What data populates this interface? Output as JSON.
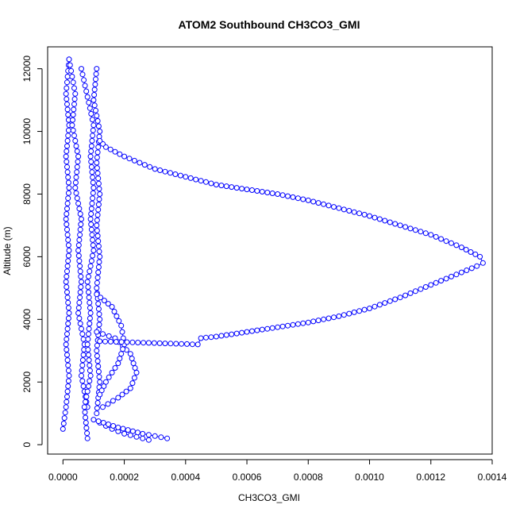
{
  "chart_data": {
    "type": "scatter",
    "title": "ATOM2 Southbound CH3CO3_GMI",
    "xlabel": "CH3CO3_GMI",
    "ylabel": "Altitude (m)",
    "xlim": [
      -5e-05,
      0.0014
    ],
    "ylim": [
      -300,
      12700
    ],
    "xticks": [
      0.0,
      0.0002,
      0.0004,
      0.0006,
      0.0008,
      0.001,
      0.0012,
      0.0014
    ],
    "xtick_labels": [
      "0.0000",
      "0.0002",
      "0.0004",
      "0.0006",
      "0.0008",
      "0.0010",
      "0.0012",
      "0.0014"
    ],
    "yticks": [
      0,
      2000,
      4000,
      6000,
      8000,
      10000,
      12000
    ],
    "ytick_labels": [
      "0",
      "2000",
      "4000",
      "6000",
      "8000",
      "10000",
      "12000"
    ],
    "grid": false,
    "series": [
      {
        "color": "#0000ff",
        "marker": "open-circle",
        "line": true,
        "profiles": [
          {
            "x": [
              0.0,
              1e-05,
              2e-05,
              1e-05,
              2e-05,
              1e-05,
              2e-05,
              1e-05,
              2e-05,
              1e-05,
              2e-05,
              1e-05,
              2e-05
            ],
            "y": [
              500,
              1200,
              2200,
              3200,
              4200,
              5200,
              6200,
              7200,
              8200,
              9200,
              10200,
              11200,
              12300
            ]
          },
          {
            "x": [
              2e-05,
              4e-05,
              3e-05,
              5e-05,
              4e-05,
              6e-05,
              5e-05,
              6e-05,
              5e-05,
              7e-05,
              6e-05,
              8e-05
            ],
            "y": [
              12300,
              11200,
              10200,
              9200,
              8200,
              7200,
              6200,
              5200,
              4200,
              3200,
              2200,
              1200
            ]
          },
          {
            "x": [
              8e-05,
              7e-05,
              9e-05,
              8e-05,
              9e-05,
              8e-05,
              0.0001,
              9e-05,
              0.0001,
              9e-05,
              0.0001,
              6e-05
            ],
            "y": [
              200,
              1200,
              2200,
              3200,
              4200,
              5200,
              6200,
              7200,
              8200,
              9200,
              10200,
              12000
            ]
          },
          {
            "x": [
              0.00011,
              0.0001,
              0.00012,
              0.00011,
              0.00012,
              0.00011,
              0.00012,
              0.00011,
              0.00012,
              0.00011,
              0.00012,
              0.00011
            ],
            "y": [
              12000,
              11000,
              10000,
              9000,
              8000,
              7000,
              6000,
              5000,
              4000,
              3000,
              2000,
              1000
            ]
          },
          {
            "x": [
              0.00012,
              0.00016,
              0.0002,
              0.00024,
              0.00028
            ],
            "y": [
              700,
              500,
              350,
              250,
              150
            ]
          },
          {
            "x": [
              0.0001,
              0.00018,
              0.00026,
              0.00034
            ],
            "y": [
              800,
              550,
              350,
              200
            ]
          },
          {
            "x": [
              0.00011,
              0.00017,
              0.00022,
              0.00024,
              0.00022,
              0.00018,
              0.00013
            ],
            "y": [
              3600,
              3400,
              2900,
              2300,
              1800,
              1500,
              1200
            ]
          },
          {
            "x": [
              0.00011,
              0.00016,
              0.00019,
              0.0002,
              0.00018,
              0.00014,
              0.00012
            ],
            "y": [
              4800,
              4400,
              3800,
              3200,
              2600,
              2000,
              1600
            ]
          },
          {
            "x": [
              0.00012,
              0.00044,
              0.00045,
              0.0005,
              0.0006,
              0.0007,
              0.0008,
              0.0009,
              0.001,
              0.0011,
              0.0012,
              0.0013,
              0.00135,
              0.00137,
              0.00136,
              0.0013,
              0.0012,
              0.0011,
              0.001,
              0.0009,
              0.0008,
              0.0007,
              0.0006,
              0.0005,
              0.0004,
              0.0003,
              0.0002,
              0.00014,
              0.00012
            ],
            "y": [
              3300,
              3200,
              3400,
              3450,
              3600,
              3750,
              3900,
              4100,
              4350,
              4700,
              5100,
              5500,
              5700,
              5800,
              6000,
              6300,
              6700,
              7000,
              7300,
              7550,
              7800,
              8000,
              8150,
              8300,
              8550,
              8800,
              9200,
              9500,
              9700
            ]
          }
        ]
      }
    ]
  }
}
